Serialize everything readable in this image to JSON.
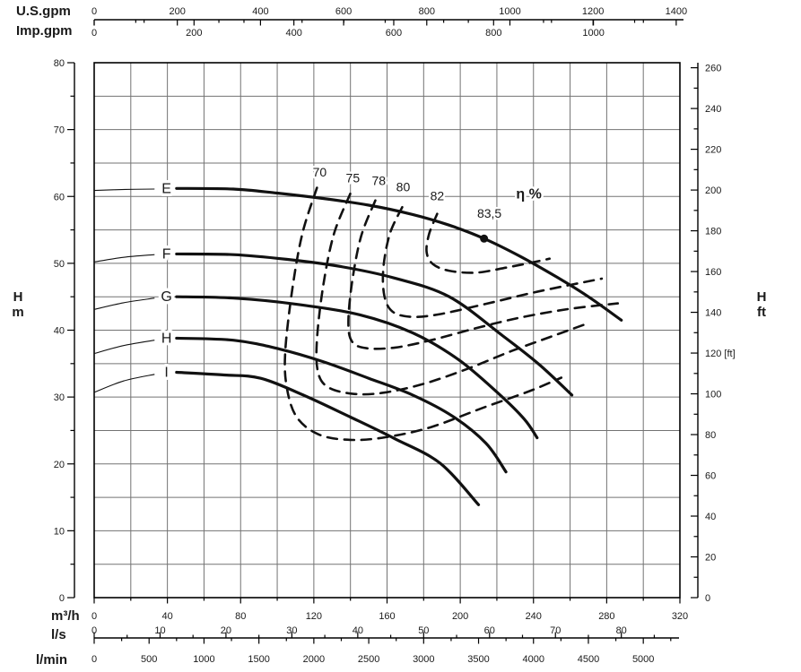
{
  "chart_data": {
    "type": "line",
    "description": "Pump performance chart: head H versus flow Q for impeller trims E-I with efficiency contours",
    "xlim_m3h": [
      0,
      320
    ],
    "ylim_m": [
      0,
      80
    ],
    "grid": {
      "x_step_m3h": 20,
      "y_step_m": 5,
      "grid_on": true
    },
    "x_axes": [
      {
        "id": "usgpm",
        "unit_label": "U.S.gpm",
        "to_m3h": 0.2271247,
        "major_ticks": [
          0,
          200,
          400,
          600,
          800,
          1000,
          1200,
          1400
        ],
        "minor_step": 100,
        "minor_end": 1400,
        "side": "top",
        "row": "above"
      },
      {
        "id": "impgpm",
        "unit_label": "Imp.gpm",
        "to_m3h": 0.2727652,
        "major_ticks": [
          0,
          200,
          400,
          600,
          800,
          1000
        ],
        "minor_step": 100,
        "minor_end": 1150,
        "side": "top",
        "row": "below"
      },
      {
        "id": "m3h",
        "unit_label": "m³/h",
        "to_m3h": 1,
        "major_ticks": [
          0,
          40,
          80,
          120,
          160,
          200,
          240,
          280,
          320
        ],
        "minor_step": 20,
        "minor_end": 320,
        "side": "plotbottom",
        "row": "below"
      },
      {
        "id": "ls",
        "unit_label": "l/s",
        "to_m3h": 3.6,
        "major_ticks": [
          0,
          10,
          20,
          30,
          40,
          50,
          60,
          70,
          80
        ],
        "minor_step": 5,
        "minor_end": 85,
        "side": "bottom2",
        "row": "above"
      },
      {
        "id": "lmin",
        "unit_label": "l/min",
        "to_m3h": 0.06,
        "major_ticks": [
          0,
          500,
          1000,
          1500,
          2000,
          2500,
          3000,
          3500,
          4000,
          4500,
          5000
        ],
        "minor_step": 250,
        "minor_end": 5250,
        "side": "bottom2",
        "row": "below"
      }
    ],
    "y_axis_left": {
      "unit_label": [
        "H",
        "m"
      ],
      "major_ticks": [
        0,
        10,
        20,
        30,
        40,
        50,
        60,
        70,
        80
      ],
      "minor_step": 5
    },
    "y_axis_right": {
      "unit_label": [
        "H",
        "ft"
      ],
      "ft_per_m": 3.28084,
      "major_ticks": [
        0,
        20,
        40,
        60,
        80,
        100,
        120,
        140,
        160,
        180,
        200,
        220,
        240,
        260
      ],
      "tick_labels": [
        "0",
        "20",
        "40",
        "60",
        "80",
        "100",
        "120 [ft]",
        "140",
        "160",
        "180",
        "200",
        "220",
        "240",
        "260"
      ],
      "minor_step": 10
    },
    "label_flow_position": 39.5,
    "curves": [
      {
        "label": "E",
        "lead_in": [
          [
            0,
            60.9
          ],
          [
            17,
            61.05
          ],
          [
            33,
            61.1
          ]
        ],
        "points": [
          [
            45,
            61.2
          ],
          [
            76,
            61.1
          ],
          [
            100,
            60.5
          ],
          [
            125,
            59.7
          ],
          [
            150,
            58.7
          ],
          [
            174,
            57.3
          ],
          [
            194,
            55.7
          ],
          [
            213,
            53.7
          ],
          [
            233,
            51.0
          ],
          [
            253,
            47.9
          ],
          [
            270,
            45.0
          ],
          [
            288,
            41.5
          ]
        ]
      },
      {
        "label": "F",
        "lead_in": [
          [
            0,
            50.2
          ],
          [
            16,
            50.9
          ],
          [
            33,
            51.3
          ]
        ],
        "points": [
          [
            45,
            51.4
          ],
          [
            76,
            51.3
          ],
          [
            105,
            50.6
          ],
          [
            135,
            49.5
          ],
          [
            164,
            47.8
          ],
          [
            194,
            45.0
          ],
          [
            223,
            39.2
          ],
          [
            243,
            34.9
          ],
          [
            261,
            30.3
          ]
        ]
      },
      {
        "label": "G",
        "lead_in": [
          [
            0,
            43.1
          ],
          [
            16,
            44.1
          ],
          [
            33,
            44.8
          ]
        ],
        "points": [
          [
            45,
            45.0
          ],
          [
            76,
            44.8
          ],
          [
            110,
            43.9
          ],
          [
            145,
            42.3
          ],
          [
            174,
            39.6
          ],
          [
            199,
            35.6
          ],
          [
            221,
            30.5
          ],
          [
            235,
            26.7
          ],
          [
            242,
            23.9
          ]
        ]
      },
      {
        "label": "H",
        "lead_in": [
          [
            0,
            36.5
          ],
          [
            16,
            37.7
          ],
          [
            33,
            38.5
          ]
        ],
        "points": [
          [
            45,
            38.8
          ],
          [
            76,
            38.5
          ],
          [
            101,
            37.2
          ],
          [
            125,
            35.3
          ],
          [
            150,
            32.8
          ],
          [
            174,
            30.3
          ],
          [
            196,
            27.1
          ],
          [
            214,
            23.1
          ],
          [
            225,
            18.8
          ]
        ]
      },
      {
        "label": "I",
        "lead_in": [
          [
            0,
            30.7
          ],
          [
            16,
            32.4
          ],
          [
            33,
            33.4
          ]
        ],
        "points": [
          [
            45,
            33.7
          ],
          [
            71,
            33.3
          ],
          [
            91,
            32.8
          ],
          [
            115,
            30.2
          ],
          [
            140,
            27.0
          ],
          [
            164,
            23.8
          ],
          [
            189,
            20.1
          ],
          [
            210,
            13.9
          ]
        ]
      }
    ],
    "efficiency": {
      "legend": "η %",
      "legend_pos": [
        237.5,
        59.7
      ],
      "bep": {
        "flow": 213,
        "head": 53.7,
        "label": "83,5",
        "label_pos": [
          215.9,
          56.8
        ]
      },
      "contours": [
        {
          "label": "70",
          "label_pos": [
            123.2,
            63.0
          ],
          "points": [
            [
              121.7,
              61.3
            ],
            [
              113.9,
              54.6
            ],
            [
              108.5,
              46.6
            ],
            [
              104.5,
              37.2
            ],
            [
              105.0,
              31.8
            ],
            [
              110.4,
              27.1
            ],
            [
              122.7,
              24.4
            ],
            [
              139.9,
              23.6
            ],
            [
              159.5,
              24.0
            ],
            [
              184.0,
              25.5
            ],
            [
              213.5,
              28.5
            ],
            [
              238.0,
              30.9
            ],
            [
              255.2,
              32.9
            ]
          ]
        },
        {
          "label": "75",
          "label_pos": [
            141.3,
            62.1
          ],
          "points": [
            [
              139.9,
              60.4
            ],
            [
              131.0,
              54.4
            ],
            [
              125.1,
              46.6
            ],
            [
              121.7,
              38.5
            ],
            [
              122.2,
              33.8
            ],
            [
              127.6,
              31.5
            ],
            [
              140.9,
              30.5
            ],
            [
              157.0,
              30.6
            ],
            [
              179.1,
              31.9
            ],
            [
              203.7,
              34.2
            ],
            [
              228.2,
              36.9
            ],
            [
              250.3,
              39.1
            ],
            [
              267.5,
              40.8
            ]
          ]
        },
        {
          "label": "78",
          "label_pos": [
            155.5,
            61.7
          ],
          "points": [
            [
              153.6,
              59.4
            ],
            [
              145.8,
              54.0
            ],
            [
              140.9,
              47.2
            ],
            [
              138.9,
              41.2
            ],
            [
              140.9,
              38.3
            ],
            [
              148.7,
              37.3
            ],
            [
              164.4,
              37.4
            ],
            [
              184.0,
              38.5
            ],
            [
              208.6,
              40.3
            ],
            [
              233.1,
              41.9
            ],
            [
              260.1,
              43.2
            ],
            [
              286.1,
              44.0
            ]
          ]
        },
        {
          "label": "80",
          "label_pos": [
            168.8,
            60.8
          ],
          "points": [
            [
              168.3,
              58.4
            ],
            [
              161.5,
              54.4
            ],
            [
              158.0,
              49.3
            ],
            [
              158.5,
              45.2
            ],
            [
              162.9,
              42.8
            ],
            [
              173.2,
              42.0
            ],
            [
              188.9,
              42.4
            ],
            [
              213.5,
              43.9
            ],
            [
              242.9,
              45.8
            ],
            [
              277.3,
              47.7
            ]
          ]
        },
        {
          "label": "82",
          "label_pos": [
            187.4,
            59.4
          ],
          "points": [
            [
              187.4,
              57.4
            ],
            [
              183.0,
              54.4
            ],
            [
              181.6,
              51.7
            ],
            [
              185.0,
              49.9
            ],
            [
              193.8,
              48.9
            ],
            [
              208.6,
              48.6
            ],
            [
              225.8,
              49.4
            ],
            [
              240.5,
              50.2
            ],
            [
              248.8,
              50.7
            ]
          ]
        }
      ]
    },
    "colors": {
      "curve": "#111111",
      "grid": "#737373",
      "box": "#000000",
      "text": "#1a1a1a",
      "background": "#ffffff"
    }
  }
}
